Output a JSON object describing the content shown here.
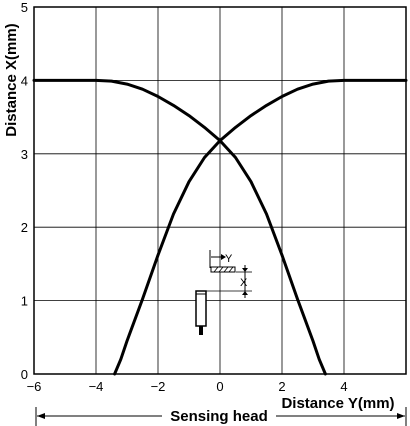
{
  "chart_data": {
    "type": "line",
    "title": "",
    "xlabel": "Distance Y(mm)",
    "ylabel": "Distance X(mm)",
    "xlim": [
      -6,
      6
    ],
    "ylim": [
      0,
      5
    ],
    "x_ticks": [
      -6,
      -4,
      -2,
      0,
      2,
      4
    ],
    "x_tick_labels": [
      "−6",
      "−4",
      "−2",
      "0",
      "2",
      "4"
    ],
    "y_ticks": [
      0,
      1,
      2,
      3,
      4,
      5
    ],
    "y_tick_labels": [
      "0",
      "1",
      "2",
      "3",
      "4",
      "5"
    ],
    "grid": true,
    "series": [
      {
        "x": [
          -6,
          -5,
          -4,
          -3.5,
          -3,
          -2.5,
          -2,
          -1.5,
          -1,
          -0.5,
          0,
          0.5,
          1,
          1.5,
          2,
          2.5,
          3,
          3.2,
          3.4
        ],
        "y": [
          4,
          4,
          4,
          3.99,
          3.95,
          3.88,
          3.78,
          3.66,
          3.52,
          3.36,
          3.18,
          2.95,
          2.62,
          2.18,
          1.62,
          1.02,
          0.45,
          0.2,
          0
        ]
      },
      {
        "x": [
          -3.4,
          -3.2,
          -3,
          -2.5,
          -2,
          -1.5,
          -1,
          -0.5,
          0,
          0.5,
          1,
          1.5,
          2,
          2.5,
          3,
          3.5,
          4,
          5,
          6
        ],
        "y": [
          0,
          0.2,
          0.45,
          1.02,
          1.62,
          2.18,
          2.62,
          2.95,
          3.18,
          3.36,
          3.52,
          3.66,
          3.78,
          3.88,
          3.95,
          3.99,
          4,
          4,
          4
        ]
      }
    ],
    "inset": {
      "y_label": "Y",
      "x_label": "X"
    },
    "footer": {
      "label": "Sensing head"
    }
  },
  "colors": {
    "line": "#000000",
    "grid": "#000000",
    "background": "#ffffff"
  }
}
